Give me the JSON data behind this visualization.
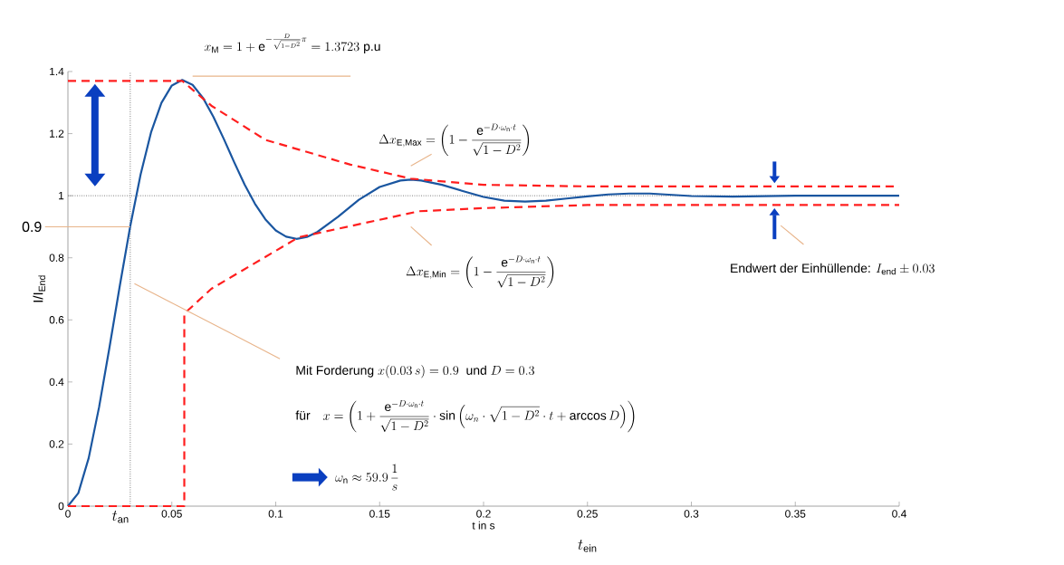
{
  "chart_data": {
    "type": "line",
    "xlabel": "t in s",
    "ylabel": "I/I$_{End}$",
    "xlim": [
      0,
      0.4
    ],
    "ylim": [
      0,
      1.4
    ],
    "xticks": [
      0,
      0.05,
      0.1,
      0.15,
      0.2,
      0.25,
      0.3,
      0.35,
      0.4
    ],
    "yticks": [
      0,
      0.2,
      0.4,
      0.6,
      0.8,
      1,
      1.2,
      1.4
    ],
    "series": [
      {
        "color": "#1a56a0",
        "x": [
          0,
          0.005,
          0.01,
          0.015,
          0.02,
          0.025,
          0.03,
          0.035,
          0.04,
          0.045,
          0.05,
          0.055,
          0.06,
          0.065,
          0.07,
          0.075,
          0.08,
          0.085,
          0.09,
          0.095,
          0.1,
          0.105,
          0.11,
          0.115,
          0.12,
          0.13,
          0.14,
          0.15,
          0.16,
          0.165,
          0.17,
          0.18,
          0.19,
          0.2,
          0.21,
          0.22,
          0.23,
          0.24,
          0.25,
          0.26,
          0.27,
          0.28,
          0.3,
          0.32,
          0.35,
          0.4
        ],
        "values": [
          0,
          0.042,
          0.155,
          0.319,
          0.511,
          0.711,
          0.902,
          1.069,
          1.204,
          1.299,
          1.355,
          1.373,
          1.357,
          1.315,
          1.254,
          1.183,
          1.108,
          1.036,
          0.974,
          0.924,
          0.888,
          0.868,
          0.861,
          0.867,
          0.883,
          0.932,
          0.987,
          1.028,
          1.049,
          1.052,
          1.049,
          1.035,
          1.015,
          0.996,
          0.984,
          0.981,
          0.984,
          0.991,
          0.998,
          1.004,
          1.007,
          1.007,
          0.999,
          0.997,
          1.0,
          1.0
        ]
      },
      {
        "color": "#ff1e1e",
        "line_style": "dashed",
        "x": [
          0,
          0.055,
          0.069,
          0.095,
          0.136,
          0.165,
          0.2,
          0.25,
          0.4
        ],
        "values": [
          1.37,
          1.37,
          1.29,
          1.18,
          1.1,
          1.055,
          1.035,
          1.03,
          1.03
        ]
      },
      {
        "color": "#ff1e1e",
        "line_style": "dashed",
        "x": [
          0,
          0.056,
          0.056,
          0.069,
          0.111,
          0.169,
          0.2,
          0.25,
          0.4
        ],
        "values": [
          0,
          0,
          0.62,
          0.7,
          0.866,
          0.95,
          0.96,
          0.97,
          0.97
        ]
      }
    ],
    "ref_lines": [
      {
        "axis": "y",
        "value": 1,
        "color": "#808080",
        "line_style": "dotted"
      },
      {
        "axis": "x",
        "value": 0.03,
        "label": "t_\\mathrm{an}",
        "color": "#808080",
        "line_style": "dotted"
      }
    ],
    "annotations": [
      "x_\\mathrm{M} = 1 + \\mathrm{e}^{-\\frac{D}{\\sqrt{1-D^2}}\\pi} = 1.3723\\ \\mbox{p.u}",
      "\\Delta x_\\mathrm{E,Max} = \\left(1 - \\frac{\\mathrm{e}^{-D\\cdot\\omega_\\mathrm{n}\\cdot t}}{\\sqrt{1-D^2}}\\right)",
      "\\Delta x_\\mathrm{E,Min} = \\left(1 - \\frac{\\mathrm{e}^{-D\\cdot\\omega_\\mathrm{n}\\cdot t}}{\\sqrt{1-D^2}}\\right)",
      "\\mbox{Endwert der Einhüllende: } I_\\mathrm{end} \\pm 0.03",
      "\\mbox{Mit Forderung } x(0.03\\,s) = 0.9 \\ \\mbox{ und } D = 0.3",
      "\\mbox{für}\\quad x = \\left(1 + \\frac{\\mathrm{e}^{-D\\cdot\\omega_\\mathrm{n}\\cdot t}}{\\sqrt{1-D^2}}\\cdot\\sin\\left(\\omega_n\\cdot\\sqrt{1-D^2}\\cdot t + \\arccos D\\right)\\right)",
      "\\omega_\\mathrm{n} \\approx 59.9\\,\\frac{1}{s}",
      {
        "text": "\\mbox{0.9}",
        "x": 0.03,
        "y": 0.9
      },
      "t_\\mathrm{ein}"
    ]
  }
}
